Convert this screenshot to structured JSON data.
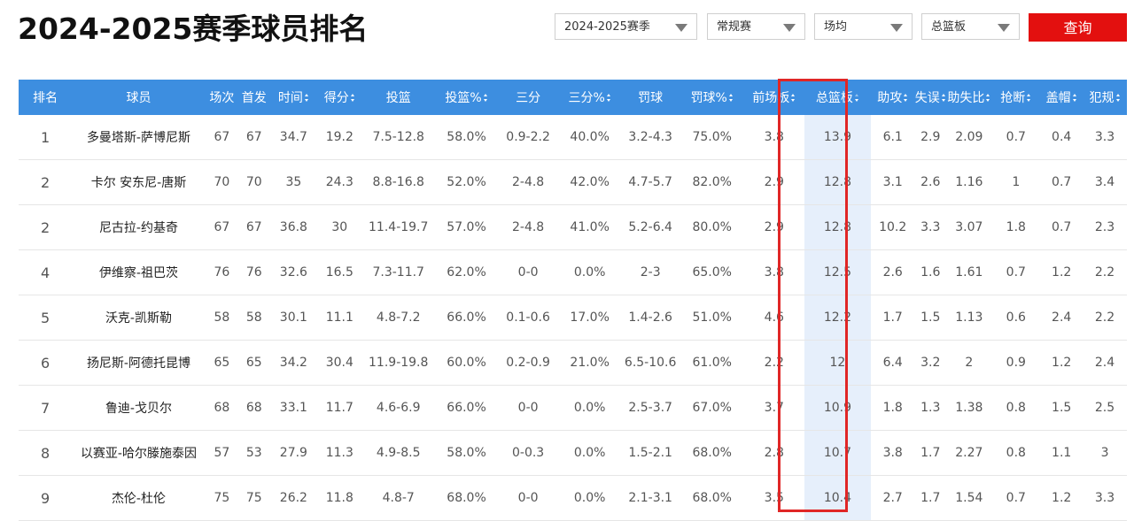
{
  "title": "2024-2025赛季球员排名",
  "filters": {
    "season": "2024-2025赛季",
    "game_type": "常规赛",
    "stat_mode": "场均",
    "sort_stat": "总篮板",
    "query_label": "查询"
  },
  "columns": [
    "排名",
    "球员",
    "场次",
    "首发",
    "时间",
    "得分",
    "投篮",
    "投篮%",
    "三分",
    "三分%",
    "罚球",
    "罚球%",
    "前场板",
    "总篮板",
    "助攻",
    "失误",
    "助失比",
    "抢断",
    "盖帽",
    "犯规"
  ],
  "rows": [
    [
      "1",
      "多曼塔斯-萨博尼斯",
      "67",
      "67",
      "34.7",
      "19.2",
      "7.5-12.8",
      "58.0%",
      "0.9-2.2",
      "40.0%",
      "3.2-4.3",
      "75.0%",
      "3.8",
      "13.9",
      "6.1",
      "2.9",
      "2.09",
      "0.7",
      "0.4",
      "3.3"
    ],
    [
      "2",
      "卡尔 安东尼-唐斯",
      "70",
      "70",
      "35",
      "24.3",
      "8.8-16.8",
      "52.0%",
      "2-4.8",
      "42.0%",
      "4.7-5.7",
      "82.0%",
      "2.9",
      "12.8",
      "3.1",
      "2.6",
      "1.16",
      "1",
      "0.7",
      "3.4"
    ],
    [
      "2",
      "尼古拉-约基奇",
      "67",
      "67",
      "36.8",
      "30",
      "11.4-19.7",
      "57.0%",
      "2-4.8",
      "41.0%",
      "5.2-6.4",
      "80.0%",
      "2.9",
      "12.8",
      "10.2",
      "3.3",
      "3.07",
      "1.8",
      "0.7",
      "2.3"
    ],
    [
      "4",
      "伊维察-祖巴茨",
      "76",
      "76",
      "32.6",
      "16.5",
      "7.3-11.7",
      "62.0%",
      "0-0",
      "0.0%",
      "2-3",
      "65.0%",
      "3.8",
      "12.5",
      "2.6",
      "1.6",
      "1.61",
      "0.7",
      "1.2",
      "2.2"
    ],
    [
      "5",
      "沃克-凯斯勒",
      "58",
      "58",
      "30.1",
      "11.1",
      "4.8-7.2",
      "66.0%",
      "0.1-0.6",
      "17.0%",
      "1.4-2.6",
      "51.0%",
      "4.6",
      "12.2",
      "1.7",
      "1.5",
      "1.13",
      "0.6",
      "2.4",
      "2.2"
    ],
    [
      "6",
      "扬尼斯-阿德托昆博",
      "65",
      "65",
      "34.2",
      "30.4",
      "11.9-19.8",
      "60.0%",
      "0.2-0.9",
      "21.0%",
      "6.5-10.6",
      "61.0%",
      "2.2",
      "12",
      "6.4",
      "3.2",
      "2",
      "0.9",
      "1.2",
      "2.4"
    ],
    [
      "7",
      "鲁迪-戈贝尔",
      "68",
      "68",
      "33.1",
      "11.7",
      "4.6-6.9",
      "66.0%",
      "0-0",
      "0.0%",
      "2.5-3.7",
      "67.0%",
      "3.7",
      "10.9",
      "1.8",
      "1.3",
      "1.38",
      "0.8",
      "1.5",
      "2.5"
    ],
    [
      "8",
      "以赛亚-哈尔滕施泰因",
      "57",
      "53",
      "27.9",
      "11.3",
      "4.9-8.5",
      "58.0%",
      "0-0.3",
      "0.0%",
      "1.5-2.1",
      "68.0%",
      "2.8",
      "10.7",
      "3.8",
      "1.7",
      "2.27",
      "0.8",
      "1.1",
      "3"
    ],
    [
      "9",
      "杰伦-杜伦",
      "75",
      "75",
      "26.2",
      "11.8",
      "4.8-7",
      "68.0%",
      "0-0",
      "0.0%",
      "2.1-3.1",
      "68.0%",
      "3.5",
      "10.4",
      "2.7",
      "1.7",
      "1.54",
      "0.7",
      "1.2",
      "3.3"
    ]
  ],
  "highlight_column": "总篮板",
  "colors": {
    "header_bg": "#3d8ee0",
    "button_red": "#e3100f",
    "highlight_bg": "#e6effb",
    "frame_red": "#e02626"
  }
}
